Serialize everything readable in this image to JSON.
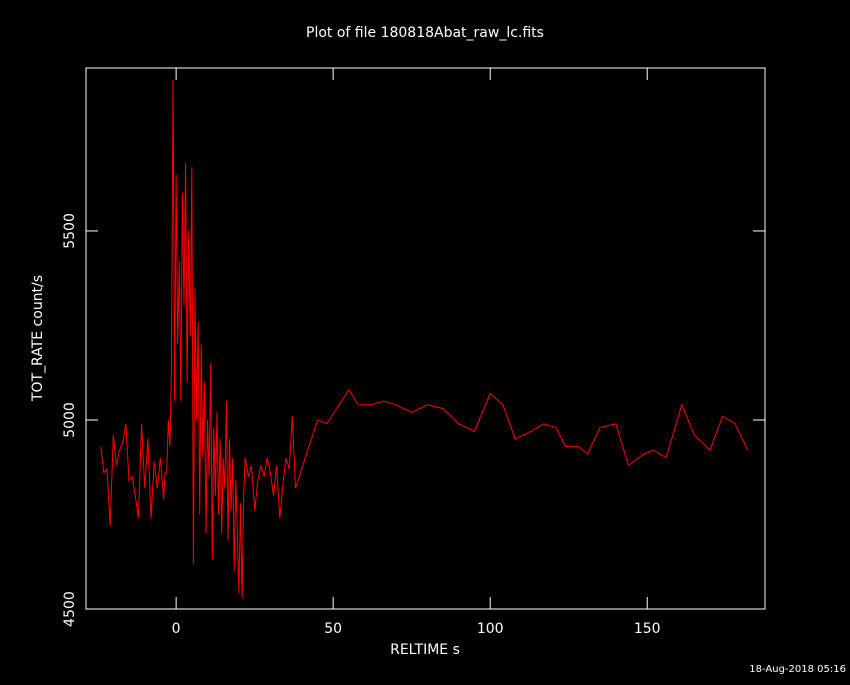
{
  "chart_data": {
    "type": "line",
    "title": "Plot of file 180818Abat_raw_lc.fits",
    "x_label": "RELTIME  s",
    "y_label": "TOT_RATE  count/s",
    "footer": "18-Aug-2018 05:16",
    "x": [
      -24,
      -23,
      -22,
      -21,
      -20,
      -19,
      -18,
      -17,
      -16,
      -15,
      -14,
      -13,
      -12,
      -11,
      -10,
      -9,
      -8,
      -7,
      -6,
      -5,
      -4,
      -3.5,
      -3,
      -2.5,
      -2,
      -1.5,
      -1,
      -0.5,
      0,
      0.5,
      1,
      1.5,
      2,
      2.5,
      3,
      3.5,
      4,
      4.5,
      5,
      5.5,
      6,
      6.5,
      7,
      7.5,
      8,
      8.5,
      9,
      9.5,
      10,
      10.5,
      11,
      11.5,
      12,
      12.5,
      13,
      13.5,
      14,
      14.5,
      15,
      15.5,
      16,
      16.5,
      17,
      17.5,
      18,
      18.5,
      19,
      19.5,
      20,
      20.5,
      21,
      21.5,
      22,
      23,
      24,
      25,
      26,
      27,
      28,
      29,
      30,
      31,
      32,
      33,
      34,
      35,
      36,
      37,
      38,
      45,
      48,
      55,
      58,
      62,
      66,
      70,
      75,
      80,
      85,
      90,
      95,
      100,
      104,
      108,
      113,
      117,
      121,
      124,
      128,
      131,
      135,
      140,
      144,
      149,
      152,
      156,
      161,
      165,
      170,
      174,
      178,
      182
    ],
    "series": [
      {
        "name": "TOT_RATE",
        "color": "#ff0000",
        "values": [
          4930,
          4860,
          4870,
          4720,
          4960,
          4880,
          4920,
          4940,
          4990,
          4840,
          4850,
          4800,
          4740,
          4990,
          4820,
          4950,
          4740,
          4890,
          4820,
          4900,
          4790,
          4860,
          4860,
          5000,
          4930,
          5130,
          5900,
          5050,
          5650,
          5200,
          5420,
          5050,
          5600,
          5300,
          5680,
          5100,
          5500,
          5220,
          5670,
          4620,
          5350,
          5000,
          5260,
          4750,
          5200,
          4900,
          5100,
          4700,
          5000,
          4850,
          5150,
          4630,
          4980,
          4800,
          5020,
          4750,
          4950,
          4700,
          4900,
          4820,
          5050,
          4680,
          4950,
          4760,
          4900,
          4600,
          4840,
          4700,
          4540,
          4780,
          4530,
          4800,
          4900,
          4850,
          4880,
          4760,
          4840,
          4880,
          4850,
          4900,
          4860,
          4800,
          4880,
          4740,
          4830,
          4900,
          4870,
          5010,
          4820,
          5000,
          4990,
          5080,
          5040,
          5040,
          5050,
          5040,
          5020,
          5040,
          5030,
          4990,
          4970,
          5070,
          5040,
          4950,
          4970,
          4990,
          4980,
          4930,
          4930,
          4910,
          4980,
          4990,
          4880,
          4910,
          4920,
          4900,
          5040,
          4960,
          4920,
          5010,
          4990,
          4920
        ]
      }
    ],
    "xlim": [
      -28.7,
      187.5
    ],
    "ylim": [
      4500,
      5931
    ],
    "xticks": [
      0,
      50,
      100,
      150
    ],
    "yticks": [
      4500,
      5000,
      5500
    ]
  }
}
